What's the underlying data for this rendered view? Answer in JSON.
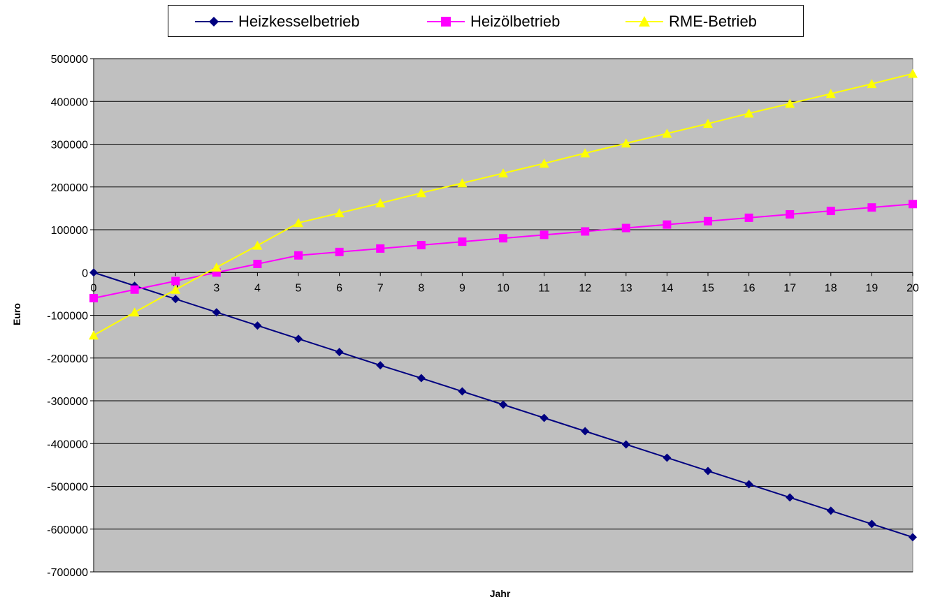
{
  "chart_data": {
    "type": "line",
    "title": "",
    "xlabel": "Jahr",
    "ylabel": "Euro",
    "x": [
      0,
      1,
      2,
      3,
      4,
      5,
      6,
      7,
      8,
      9,
      10,
      11,
      12,
      13,
      14,
      15,
      16,
      17,
      18,
      19,
      20
    ],
    "ylim": [
      -700000,
      500000
    ],
    "yticks": [
      500000,
      400000,
      300000,
      200000,
      100000,
      0,
      -100000,
      -200000,
      -300000,
      -400000,
      -500000,
      -600000,
      -700000
    ],
    "grid": true,
    "legend_position": "top",
    "plot_background": "#c0c0c0",
    "series": [
      {
        "name": "Heizkesselbetrieb",
        "color": "#000080",
        "marker": "diamond",
        "values": [
          0,
          -31000,
          -62000,
          -93000,
          -124000,
          -155000,
          -186000,
          -217000,
          -247000,
          -278000,
          -309000,
          -340000,
          -371000,
          -402000,
          -433000,
          -464000,
          -495000,
          -526000,
          -557000,
          -588000,
          -619000
        ]
      },
      {
        "name": "Heizölbetrieb",
        "color": "#ff00ff",
        "marker": "square",
        "values": [
          -60000,
          -40000,
          -20000,
          0,
          20000,
          40000,
          48000,
          56000,
          64000,
          72000,
          80000,
          88000,
          96000,
          104000,
          112000,
          120000,
          128000,
          136000,
          144000,
          152000,
          160000
        ]
      },
      {
        "name": "RME-Betrieb",
        "color": "#ffff00",
        "marker": "triangle",
        "values": [
          -147000,
          -93000,
          -40000,
          12000,
          63000,
          116000,
          139000,
          162000,
          186000,
          209000,
          232000,
          255000,
          279000,
          302000,
          325000,
          348000,
          372000,
          395000,
          418000,
          441000,
          465000
        ]
      }
    ]
  }
}
